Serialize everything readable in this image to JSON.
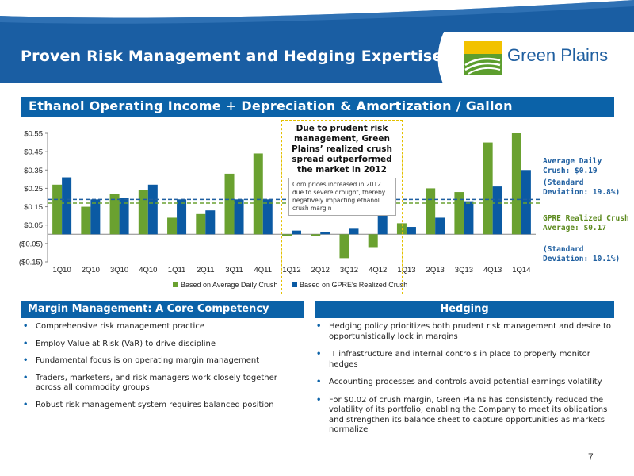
{
  "header": {
    "title": "Proven Risk Management and Hedging Expertise",
    "logo_text": "Green Plains"
  },
  "subtitle": "Ethanol Operating Income + Depreciation & Amortization / Gallon",
  "callout": {
    "title": "Due to prudent risk management, Green Plains’ realized crush spread outperformed the market in 2012",
    "note": "Corn prices increased in 2012 due to severe drought, thereby negatively impacting ethanol crush margin"
  },
  "side_notes": {
    "avg_daily": "Average Daily Crush: $0.19",
    "avg_daily_sd": "(Standard Deviation: 19.8%)",
    "gpre_realized": "GPRE Realized Crush Average: $0.17",
    "gpre_realized_sd": "(Standard Deviation: 10.1%)"
  },
  "colors": {
    "green": "#6aa130",
    "blue": "#0b5aa3",
    "header_blue": "#1f5fa0"
  },
  "chart_data": {
    "type": "bar",
    "categories": [
      "1Q10",
      "2Q10",
      "3Q10",
      "4Q10",
      "1Q11",
      "2Q11",
      "3Q11",
      "4Q11",
      "1Q12",
      "2Q12",
      "3Q12",
      "4Q12",
      "1Q13",
      "2Q13",
      "3Q13",
      "4Q13",
      "1Q14"
    ],
    "series": [
      {
        "name": "Based on Average Daily Crush",
        "values": [
          0.27,
          0.15,
          0.22,
          0.24,
          0.09,
          0.11,
          0.33,
          0.44,
          -0.01,
          -0.01,
          -0.13,
          -0.07,
          0.06,
          0.25,
          0.23,
          0.5,
          0.55
        ]
      },
      {
        "name": "Based on GPRE's Realized Crush",
        "values": [
          0.31,
          0.19,
          0.2,
          0.27,
          0.19,
          0.13,
          0.19,
          0.19,
          0.02,
          0.01,
          0.03,
          0.11,
          0.04,
          0.09,
          0.18,
          0.26,
          0.35
        ]
      }
    ],
    "reference_lines": [
      {
        "value": 0.19
      },
      {
        "value": 0.17
      }
    ],
    "ylim": [
      -0.15,
      0.55
    ],
    "yticks": [
      0.55,
      0.45,
      0.35,
      0.25,
      0.15,
      0.05,
      -0.05,
      -0.15
    ],
    "ytick_labels": [
      "$0.55",
      "$0.45",
      "$0.35",
      "$0.25",
      "$0.15",
      "$0.05",
      "($0.05)",
      "($0.15)"
    ],
    "legend_position": "bottom",
    "grid": false
  },
  "margin_panel": {
    "heading": "Margin Management: A Core Competency",
    "bullets": [
      "Comprehensive risk management practice",
      "Employ Value at Risk (VaR) to drive discipline",
      "Fundamental focus is on operating margin management",
      "Traders, marketers, and risk managers work closely together across all commodity groups",
      "Robust risk management system requires balanced position"
    ]
  },
  "hedging_panel": {
    "heading": "Hedging",
    "bullets": [
      "Hedging policy prioritizes both prudent risk management and desire to opportunistically lock in margins",
      "IT infrastructure and internal controls in place to properly monitor hedges",
      "Accounting processes and controls avoid potential earnings volatility",
      "For $0.02 of crush margin, Green Plains has consistently reduced the volatility of its portfolio, enabling the Company to meet its obligations and strengthen its balance sheet to capture opportunities as markets normalize"
    ]
  },
  "page_number": "7"
}
